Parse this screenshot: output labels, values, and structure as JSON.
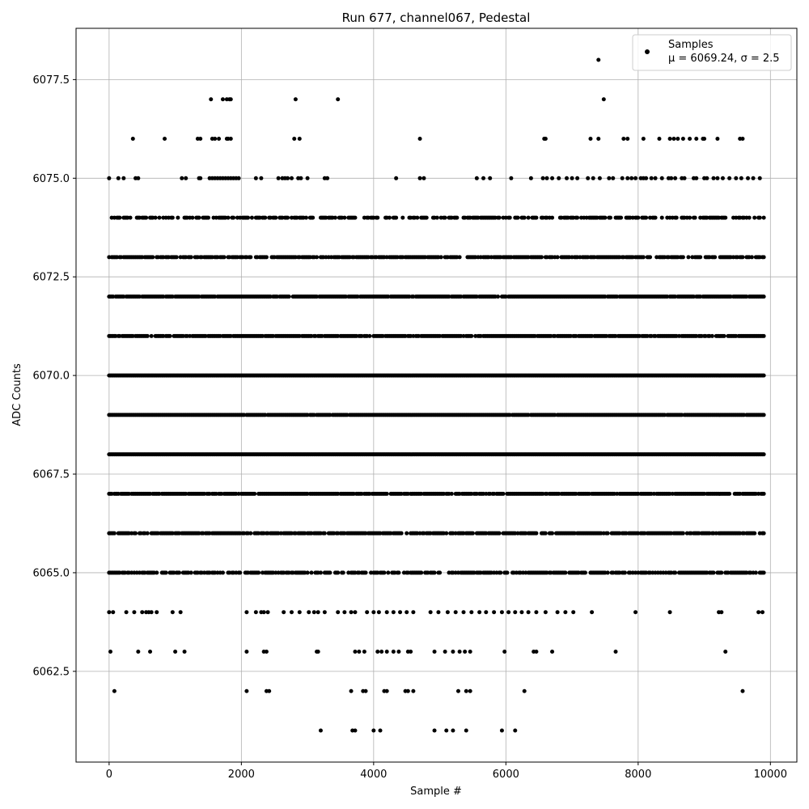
{
  "chart_data": {
    "type": "scatter",
    "title": "Run 677, channel067, Pedestal",
    "xlabel": "Sample #",
    "ylabel": "ADC Counts",
    "xlim": [
      -500,
      10400
    ],
    "ylim": [
      6060.2,
      6078.8
    ],
    "grid": true,
    "legend_position": "top-right",
    "x_ticks": [
      0,
      2000,
      4000,
      6000,
      8000,
      10000
    ],
    "x_tick_labels": [
      "0",
      "2000",
      "4000",
      "6000",
      "8000",
      "10000"
    ],
    "y_ticks": [
      6062.5,
      6065.0,
      6067.5,
      6070.0,
      6072.5,
      6075.0,
      6077.5
    ],
    "y_tick_labels": [
      "6062.5",
      "6065.0",
      "6067.5",
      "6070.0",
      "6072.5",
      "6075.0",
      "6077.5"
    ],
    "series": [
      {
        "name": "Samples",
        "marker_color": "#000000",
        "x_range": [
          0,
          9900
        ],
        "levels": [
          {
            "y": 6061,
            "x": [
              3200,
              3680,
              3720,
              4000,
              4100,
              4920,
              5100,
              5200,
              5400,
              5940,
              6140
            ]
          },
          {
            "y": 6062,
            "x": [
              80,
              2080,
              2380,
              2420,
              3660,
              3840,
              3880,
              4160,
              4200,
              4480,
              4520,
              4600,
              5280,
              5400,
              5460,
              6280,
              9580
            ]
          },
          {
            "y": 6063,
            "x": [
              20,
              440,
              620,
              1000,
              1140,
              2080,
              2340,
              2380,
              3140,
              3160,
              3720,
              3780,
              3860,
              4060,
              4120,
              4200,
              4300,
              4380,
              4520,
              4560,
              4920,
              5080,
              5200,
              5300,
              5380,
              5460,
              5980,
              6420,
              6460,
              6700,
              7660,
              9320
            ]
          },
          {
            "y": 6064,
            "x": [
              0,
              60,
              260,
              380,
              500,
              560,
              600,
              640,
              720,
              960,
              1080,
              2080,
              2220,
              2300,
              2340,
              2400,
              2640,
              2760,
              2880,
              3020,
              3100,
              3160,
              3260,
              3460,
              3560,
              3660,
              3720,
              3900,
              4000,
              4080,
              4200,
              4300,
              4400,
              4500,
              4600,
              4860,
              4980,
              5120,
              5240,
              5360,
              5480,
              5600,
              5700,
              5820,
              5940,
              6040,
              6140,
              6240,
              6340,
              6460,
              6600,
              6780,
              6900,
              7020,
              7300,
              7960,
              8480,
              9220,
              9260,
              9820,
              9880
            ]
          },
          {
            "y": 6065,
            "x_range": [
              0,
              9900
            ],
            "density": 0.72,
            "seed": 6
          },
          {
            "y": 6066,
            "x_range": [
              0,
              9900
            ],
            "density": 0.82,
            "seed": 7
          },
          {
            "y": 6067,
            "x_range": [
              0,
              9900
            ],
            "density": 0.9,
            "seed": 8
          },
          {
            "y": 6068,
            "x_range": [
              0,
              9900
            ],
            "density": 1.0,
            "seed": 9
          },
          {
            "y": 6069,
            "x_range": [
              0,
              9900
            ],
            "density": 0.98,
            "seed": 10
          },
          {
            "y": 6070,
            "x_range": [
              0,
              9900
            ],
            "density": 1.0,
            "seed": 11
          },
          {
            "y": 6071,
            "x_range": [
              0,
              9900
            ],
            "density": 0.88,
            "seed": 12
          },
          {
            "y": 6072,
            "x_range": [
              0,
              9900
            ],
            "density": 0.92,
            "seed": 13
          },
          {
            "y": 6073,
            "x_range": [
              0,
              9900
            ],
            "density": 0.76,
            "seed": 14
          },
          {
            "y": 6074,
            "x_range": [
              0,
              9900
            ],
            "density": 0.55,
            "seed": 15
          },
          {
            "y": 6075,
            "x": [
              0,
              140,
              220,
              400,
              440,
              1100,
              1160,
              1360,
              1380,
              1520,
              1560,
              1600,
              1640,
              1680,
              1720,
              1760,
              1800,
              1840,
              1880,
              1920,
              1960,
              2220,
              2300,
              2560,
              2620,
              2660,
              2700,
              2760,
              2860,
              2900,
              3000,
              3260,
              3300,
              4340,
              4700,
              4760,
              5560,
              5660,
              5760,
              6080,
              6380,
              6560,
              6620,
              6700,
              6800,
              6920,
              7000,
              7080,
              7240,
              7320,
              7420,
              7560,
              7620,
              7760,
              7840,
              7900,
              7960,
              8040,
              8080,
              8120,
              8200,
              8260,
              8360,
              8460,
              8500,
              8560,
              8660,
              8700,
              8840,
              8880,
              9000,
              9040,
              9140,
              9200,
              9280,
              9380,
              9480,
              9560,
              9660,
              9740,
              9840
            ]
          },
          {
            "y": 6076,
            "x": [
              360,
              840,
              1340,
              1380,
              1560,
              1600,
              1660,
              1780,
              1800,
              1840,
              2800,
              2880,
              4700,
              6580,
              6600,
              7280,
              7400,
              7780,
              7840,
              8080,
              8320,
              8480,
              8540,
              8600,
              8680,
              8780,
              8880,
              8980,
              9000,
              9200,
              9540,
              9580
            ]
          },
          {
            "y": 6077,
            "x": [
              1540,
              1720,
              1780,
              1820,
              1840,
              2820,
              3460,
              7480
            ]
          },
          {
            "y": 6078,
            "x": [
              7400
            ]
          }
        ]
      }
    ],
    "legend": {
      "label": "Samples",
      "stats": "μ = 6069.24, σ = 2.5"
    }
  }
}
